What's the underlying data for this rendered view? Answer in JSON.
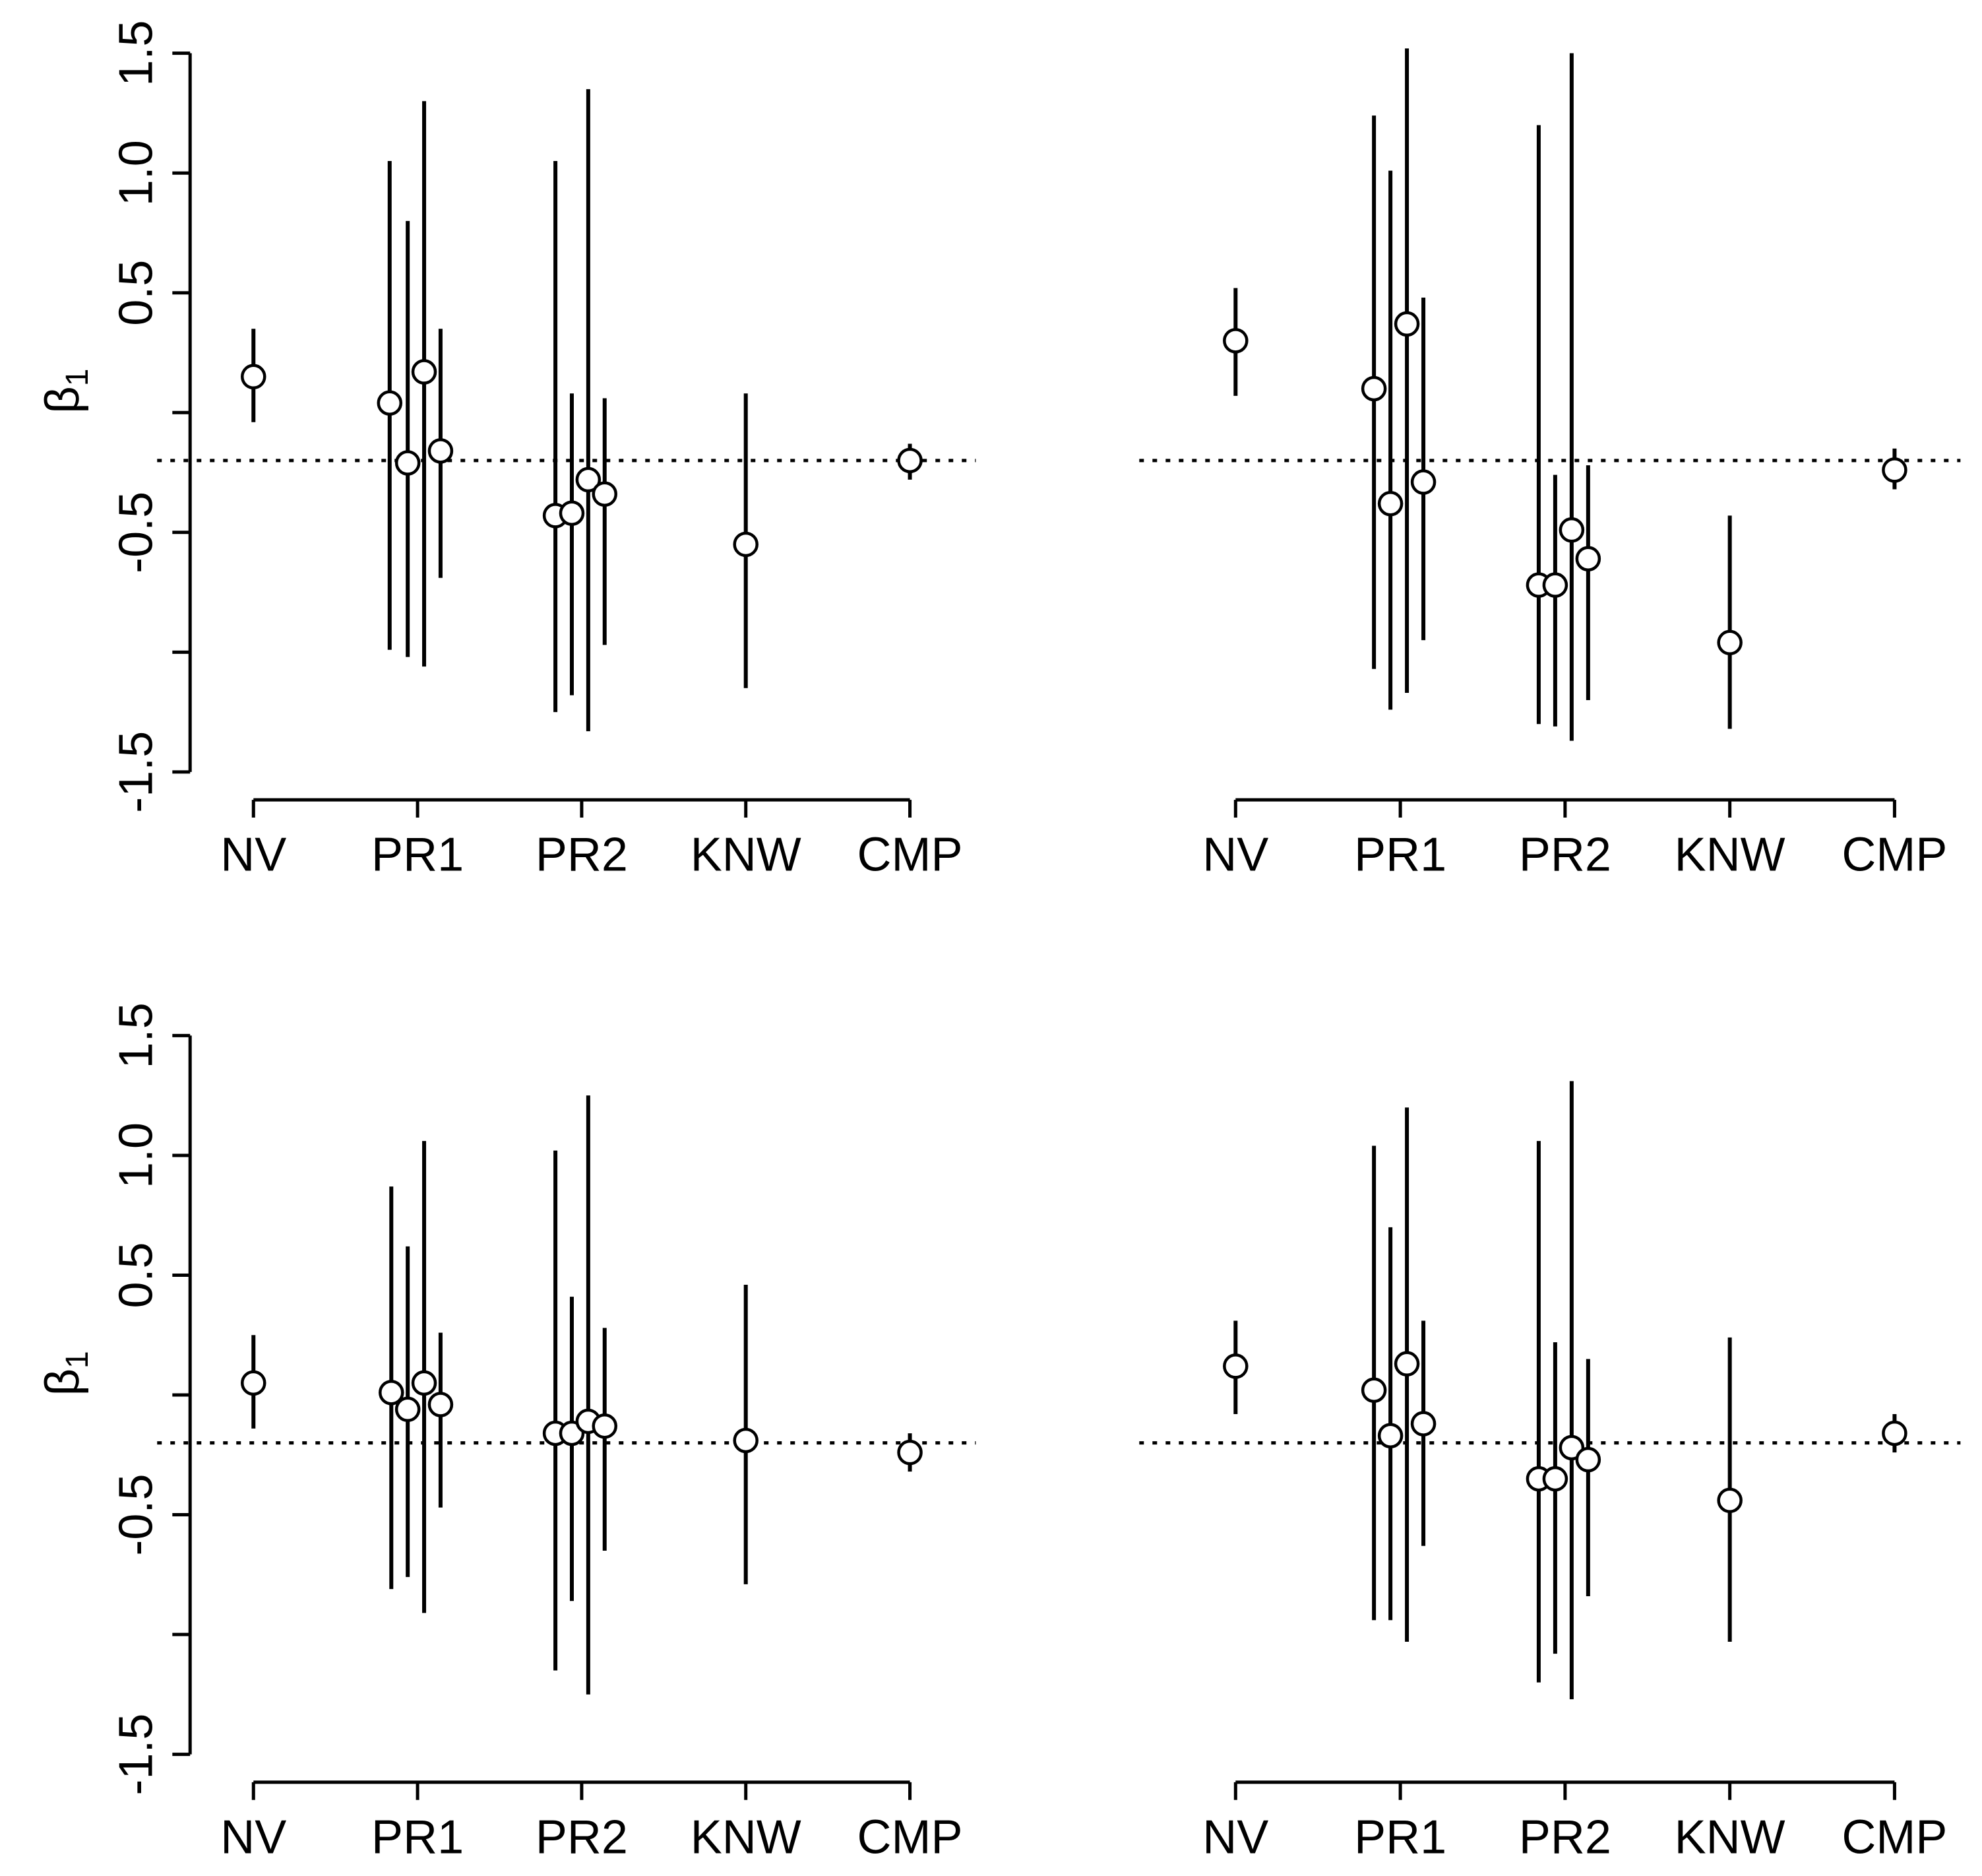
{
  "chart_data": [
    {
      "type": "scatter",
      "panel": "top-left",
      "title": "",
      "ylabel": "β",
      "ylabel_sub": "1",
      "xlabel": "",
      "ylim": [
        -1.5,
        1.5
      ],
      "yticks": [
        -1.5,
        -0.5,
        0.5,
        1.0,
        1.5
      ],
      "ytick_labels": [
        "-1.5",
        "-0.5",
        "0.5",
        "1.0",
        "1.5"
      ],
      "categories": [
        "NV",
        "PR1",
        "PR2",
        "KNW",
        "CMP"
      ],
      "reference_line": -0.2,
      "points": [
        {
          "x": 1.0,
          "est": 0.15,
          "lo": -0.04,
          "hi": 0.35
        },
        {
          "x": 1.83,
          "est": 0.04,
          "lo": -0.99,
          "hi": 1.05
        },
        {
          "x": 1.94,
          "est": -0.21,
          "lo": -1.02,
          "hi": 0.8
        },
        {
          "x": 2.04,
          "est": 0.17,
          "lo": -1.06,
          "hi": 1.3
        },
        {
          "x": 2.14,
          "est": -0.16,
          "lo": -0.69,
          "hi": 0.35
        },
        {
          "x": 2.84,
          "est": -0.43,
          "lo": -1.25,
          "hi": 1.05
        },
        {
          "x": 2.94,
          "est": -0.42,
          "lo": -1.18,
          "hi": 0.08
        },
        {
          "x": 3.04,
          "est": -0.28,
          "lo": -1.33,
          "hi": 1.35
        },
        {
          "x": 3.14,
          "est": -0.34,
          "lo": -0.97,
          "hi": 0.06
        },
        {
          "x": 4.0,
          "est": -0.55,
          "lo": -1.15,
          "hi": 0.08
        },
        {
          "x": 5.0,
          "est": -0.2,
          "lo": -0.28,
          "hi": -0.13
        }
      ]
    },
    {
      "type": "scatter",
      "panel": "top-right",
      "title": "",
      "ylabel": "",
      "xlabel": "",
      "ylim": [
        -1.5,
        1.5
      ],
      "categories": [
        "NV",
        "PR1",
        "PR2",
        "KNW",
        "CMP"
      ],
      "reference_line": -0.2,
      "points": [
        {
          "x": 1.0,
          "est": 0.3,
          "lo": 0.07,
          "hi": 0.52
        },
        {
          "x": 1.84,
          "est": 0.1,
          "lo": -1.07,
          "hi": 1.24
        },
        {
          "x": 1.94,
          "est": -0.38,
          "lo": -1.24,
          "hi": 1.01
        },
        {
          "x": 2.04,
          "est": 0.37,
          "lo": -1.17,
          "hi": 1.52
        },
        {
          "x": 2.14,
          "est": -0.29,
          "lo": -0.95,
          "hi": 0.48
        },
        {
          "x": 2.84,
          "est": -0.72,
          "lo": -1.3,
          "hi": 1.2
        },
        {
          "x": 2.94,
          "est": -0.72,
          "lo": -1.31,
          "hi": -0.26
        },
        {
          "x": 3.04,
          "est": -0.49,
          "lo": -1.37,
          "hi": 1.5
        },
        {
          "x": 3.14,
          "est": -0.61,
          "lo": -1.2,
          "hi": -0.22
        },
        {
          "x": 4.0,
          "est": -0.96,
          "lo": -1.32,
          "hi": -0.43
        },
        {
          "x": 5.0,
          "est": -0.24,
          "lo": -0.32,
          "hi": -0.15
        }
      ]
    },
    {
      "type": "scatter",
      "panel": "bottom-left",
      "title": "",
      "ylabel": "β",
      "ylabel_sub": "1",
      "xlabel": "",
      "ylim": [
        -1.5,
        1.5
      ],
      "yticks": [
        -1.5,
        -0.5,
        0.5,
        1.0,
        1.5
      ],
      "ytick_labels": [
        "-1.5",
        "-0.5",
        "0.5",
        "1.0",
        "1.5"
      ],
      "categories": [
        "NV",
        "PR1",
        "PR2",
        "KNW",
        "CMP"
      ],
      "reference_line": -0.2,
      "points": [
        {
          "x": 1.0,
          "est": 0.05,
          "lo": -0.14,
          "hi": 0.25
        },
        {
          "x": 1.84,
          "est": 0.01,
          "lo": -0.81,
          "hi": 0.87
        },
        {
          "x": 1.94,
          "est": -0.06,
          "lo": -0.76,
          "hi": 0.62
        },
        {
          "x": 2.04,
          "est": 0.05,
          "lo": -0.91,
          "hi": 1.06
        },
        {
          "x": 2.14,
          "est": -0.04,
          "lo": -0.47,
          "hi": 0.26
        },
        {
          "x": 2.84,
          "est": -0.16,
          "lo": -1.15,
          "hi": 1.02
        },
        {
          "x": 2.94,
          "est": -0.16,
          "lo": -0.86,
          "hi": 0.41
        },
        {
          "x": 3.04,
          "est": -0.11,
          "lo": -1.25,
          "hi": 1.25
        },
        {
          "x": 3.14,
          "est": -0.13,
          "lo": -0.65,
          "hi": 0.28
        },
        {
          "x": 4.0,
          "est": -0.19,
          "lo": -0.79,
          "hi": 0.46
        },
        {
          "x": 5.0,
          "est": -0.24,
          "lo": -0.32,
          "hi": -0.16
        }
      ]
    },
    {
      "type": "scatter",
      "panel": "bottom-right",
      "title": "",
      "ylabel": "",
      "xlabel": "",
      "ylim": [
        -1.5,
        1.5
      ],
      "categories": [
        "NV",
        "PR1",
        "PR2",
        "KNW",
        "CMP"
      ],
      "reference_line": -0.2,
      "points": [
        {
          "x": 1.0,
          "est": 0.12,
          "lo": -0.08,
          "hi": 0.31
        },
        {
          "x": 1.84,
          "est": 0.02,
          "lo": -0.94,
          "hi": 1.04
        },
        {
          "x": 1.94,
          "est": -0.17,
          "lo": -0.94,
          "hi": 0.7
        },
        {
          "x": 2.04,
          "est": 0.13,
          "lo": -1.03,
          "hi": 1.2
        },
        {
          "x": 2.14,
          "est": -0.12,
          "lo": -0.63,
          "hi": 0.31
        },
        {
          "x": 2.84,
          "est": -0.35,
          "lo": -1.2,
          "hi": 1.06
        },
        {
          "x": 2.94,
          "est": -0.35,
          "lo": -1.08,
          "hi": 0.22
        },
        {
          "x": 3.04,
          "est": -0.22,
          "lo": -1.27,
          "hi": 1.31
        },
        {
          "x": 3.14,
          "est": -0.27,
          "lo": -0.84,
          "hi": 0.15
        },
        {
          "x": 4.0,
          "est": -0.44,
          "lo": -1.03,
          "hi": 0.24
        },
        {
          "x": 5.0,
          "est": -0.16,
          "lo": -0.24,
          "hi": -0.08
        }
      ]
    }
  ]
}
